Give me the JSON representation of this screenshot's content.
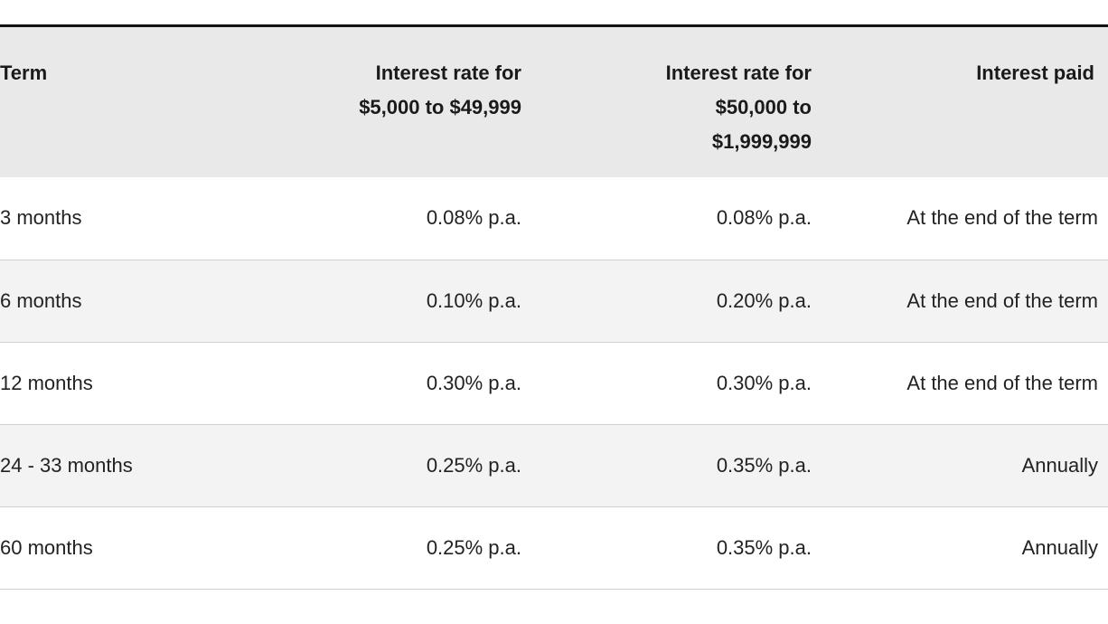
{
  "table": {
    "headers": {
      "term": "Term",
      "rate_low_line1": "Interest rate for",
      "rate_low_line2": "$5,000 to $49,999",
      "rate_high_line1": "Interest rate for",
      "rate_high_line2": "$50,000 to",
      "rate_high_line3": "$1,999,999",
      "interest_paid": "Interest paid"
    },
    "rows": [
      {
        "term": "3 months",
        "rate_low": "0.08% p.a.",
        "rate_high": "0.08% p.a.",
        "interest_paid": "At the end of the term"
      },
      {
        "term": "6 months",
        "rate_low": "0.10% p.a.",
        "rate_high": "0.20% p.a.",
        "interest_paid": "At the end of the term"
      },
      {
        "term": "12 months",
        "rate_low": "0.30% p.a.",
        "rate_high": "0.30% p.a.",
        "interest_paid": "At the end of the term"
      },
      {
        "term": "24 - 33 months",
        "rate_low": "0.25% p.a.",
        "rate_high": "0.35% p.a.",
        "interest_paid": "Annually"
      },
      {
        "term": "60 months",
        "rate_low": "0.25% p.a.",
        "rate_high": "0.35% p.a.",
        "interest_paid": "Annually"
      }
    ]
  }
}
